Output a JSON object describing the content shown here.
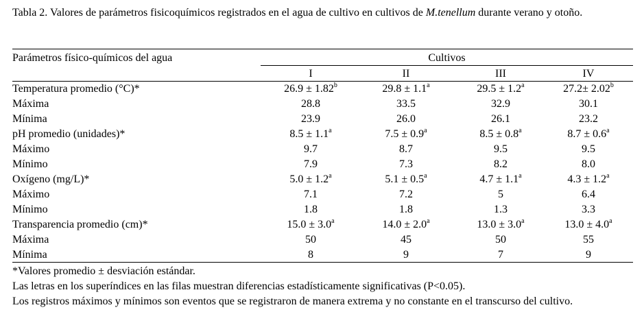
{
  "caption": {
    "prefix": "Tabla 2. Valores de parámetros fisicoquímicos registrados en el agua de cultivo en cultivos de ",
    "species": "M.tenellum",
    "suffix": " durante verano y otoño."
  },
  "table": {
    "param_header": "Parámetros físico-químicos del agua",
    "group_header": "Cultivos",
    "columns": [
      "I",
      "II",
      "III",
      "IV"
    ],
    "rows": [
      {
        "label": "Temperatura promedio (°C)*",
        "cells": [
          {
            "v": "26.9 ± 1.82",
            "s": "b"
          },
          {
            "v": "29.8 ± 1.1",
            "s": "a"
          },
          {
            "v": "29.5 ± 1.2",
            "s": "a"
          },
          {
            "v": "27.2± 2.02",
            "s": "b"
          }
        ]
      },
      {
        "label": "Máxima",
        "cells": [
          {
            "v": "28.8",
            "s": ""
          },
          {
            "v": "33.5",
            "s": ""
          },
          {
            "v": "32.9",
            "s": ""
          },
          {
            "v": "30.1",
            "s": ""
          }
        ]
      },
      {
        "label": "Mínima",
        "cells": [
          {
            "v": "23.9",
            "s": ""
          },
          {
            "v": "26.0",
            "s": ""
          },
          {
            "v": "26.1",
            "s": ""
          },
          {
            "v": "23.2",
            "s": ""
          }
        ]
      },
      {
        "label": "pH promedio (unidades)*",
        "cells": [
          {
            "v": "8.5 ± 1.1",
            "s": "a"
          },
          {
            "v": "7.5 ± 0.9",
            "s": "a"
          },
          {
            "v": "8.5 ± 0.8",
            "s": "a"
          },
          {
            "v": "8.7 ± 0.6",
            "s": "a"
          }
        ]
      },
      {
        "label": "Máximo",
        "cells": [
          {
            "v": "9.7",
            "s": ""
          },
          {
            "v": "8.7",
            "s": ""
          },
          {
            "v": "9.5",
            "s": ""
          },
          {
            "v": "9.5",
            "s": ""
          }
        ]
      },
      {
        "label": "Mínimo",
        "cells": [
          {
            "v": "7.9",
            "s": ""
          },
          {
            "v": "7.3",
            "s": ""
          },
          {
            "v": "8.2",
            "s": ""
          },
          {
            "v": "8.0",
            "s": ""
          }
        ]
      },
      {
        "label": "Oxígeno (mg/L)*",
        "cells": [
          {
            "v": "5.0 ± 1.2",
            "s": "a"
          },
          {
            "v": "5.1 ± 0.5",
            "s": "a"
          },
          {
            "v": "4.7 ± 1.1",
            "s": "a"
          },
          {
            "v": "4.3 ± 1.2",
            "s": "a"
          }
        ]
      },
      {
        "label": "Máximo",
        "cells": [
          {
            "v": "7.1",
            "s": ""
          },
          {
            "v": "7.2",
            "s": ""
          },
          {
            "v": "5",
            "s": ""
          },
          {
            "v": "6.4",
            "s": ""
          }
        ]
      },
      {
        "label": "Mínimo",
        "cells": [
          {
            "v": "1.8",
            "s": ""
          },
          {
            "v": "1.8",
            "s": ""
          },
          {
            "v": "1.3",
            "s": ""
          },
          {
            "v": "3.3",
            "s": ""
          }
        ]
      },
      {
        "label": "Transparencia  promedio (cm)*",
        "cells": [
          {
            "v": "15.0 ± 3.0",
            "s": "a"
          },
          {
            "v": "14.0 ± 2.0",
            "s": "a"
          },
          {
            "v": "13.0 ± 3.0",
            "s": "a"
          },
          {
            "v": "13.0 ± 4.0",
            "s": "a"
          }
        ]
      },
      {
        "label": "Máxima",
        "cells": [
          {
            "v": "50",
            "s": ""
          },
          {
            "v": "45",
            "s": ""
          },
          {
            "v": "50",
            "s": ""
          },
          {
            "v": "55",
            "s": ""
          }
        ]
      },
      {
        "label": "Mínima",
        "cells": [
          {
            "v": "8",
            "s": ""
          },
          {
            "v": "9",
            "s": ""
          },
          {
            "v": "7",
            "s": ""
          },
          {
            "v": "9",
            "s": ""
          }
        ]
      }
    ]
  },
  "notes": [
    "*Valores promedio ± desviación estándar.",
    "Las letras en los superíndices en las filas muestran diferencias estadísticamente significativas (P<0.05).",
    "Los registros máximos y mínimos son eventos que se registraron de manera extrema y no constante en el transcurso del cultivo."
  ]
}
